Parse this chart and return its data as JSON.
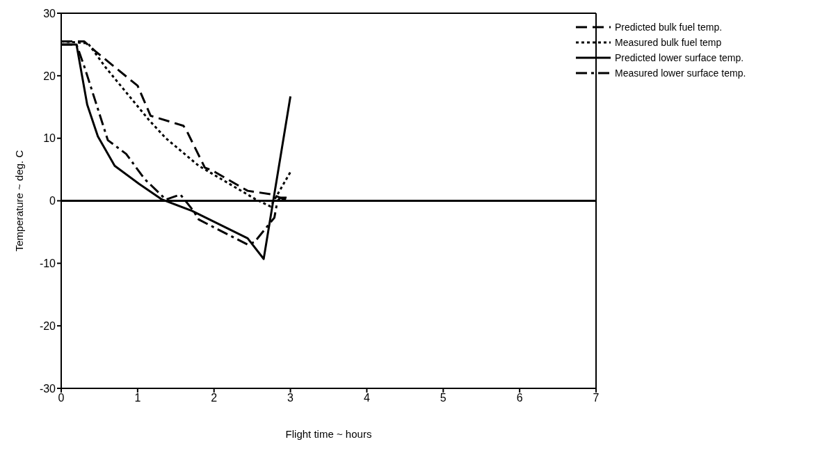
{
  "chart_data": {
    "type": "line",
    "xlabel": "Flight time ~ hours",
    "ylabel": "Temperature ~ deg. C",
    "xlim": [
      0,
      7
    ],
    "xticks": [
      0,
      1,
      2,
      3,
      4,
      5,
      6,
      7
    ],
    "ylim": [
      -30,
      30
    ],
    "yticks": [
      -30,
      -20,
      -10,
      0,
      10,
      20,
      30
    ],
    "grid": false,
    "legend": "top right",
    "marker": "none",
    "ref_lines": [
      {
        "axis": "y",
        "value": 0,
        "color": "#000000",
        "line_style": "solid"
      }
    ],
    "series": [
      {
        "name": "Predicted bulk fuel temp.",
        "color": "#000000",
        "line_style": "dashed",
        "x": [
          0,
          0.3,
          0.45,
          1.0,
          1.17,
          1.6,
          1.65,
          1.88,
          1.97,
          2.44,
          2.77,
          2.92,
          3.0
        ],
        "values": [
          25.5,
          25.5,
          23.9,
          18.4,
          13.6,
          12,
          11,
          5.3,
          4.9,
          1.6,
          1.0,
          0.2,
          0.5
        ]
      },
      {
        "name": "Measured bulk fuel temp",
        "color": "#000000",
        "line_style": "dotted",
        "x": [
          0,
          0.35,
          0.59,
          1.15,
          1.37,
          1.8,
          2.55,
          2.74,
          3.0
        ],
        "values": [
          25.5,
          25.2,
          21.2,
          12.9,
          10,
          5.6,
          0.2,
          -0.9,
          4.6
        ]
      },
      {
        "name": "Predicted lower surface temp.",
        "color": "#000000",
        "line_style": "solid",
        "x": [
          0,
          0.2,
          0.34,
          0.48,
          0.7,
          1.02,
          1.32,
          1.71,
          2.44,
          2.65,
          3.0
        ],
        "values": [
          25,
          25,
          15.4,
          10.3,
          5.6,
          2.7,
          0.2,
          -1.6,
          -6,
          -9.3,
          16.7
        ]
      },
      {
        "name": "Measured lower surface temp.",
        "color": "#000000",
        "line_style": "dashdot",
        "x": [
          0,
          0.2,
          0.31,
          0.61,
          0.85,
          1.09,
          1.37,
          1.56,
          1.73,
          1.8,
          2.44,
          2.53,
          2.79,
          2.83,
          2.87,
          3.0
        ],
        "values": [
          25,
          25,
          21.2,
          9.7,
          7.5,
          3.5,
          0.2,
          1,
          -1.6,
          -3,
          -7,
          -6.6,
          -2.7,
          0,
          0.5,
          0.5
        ]
      }
    ]
  }
}
